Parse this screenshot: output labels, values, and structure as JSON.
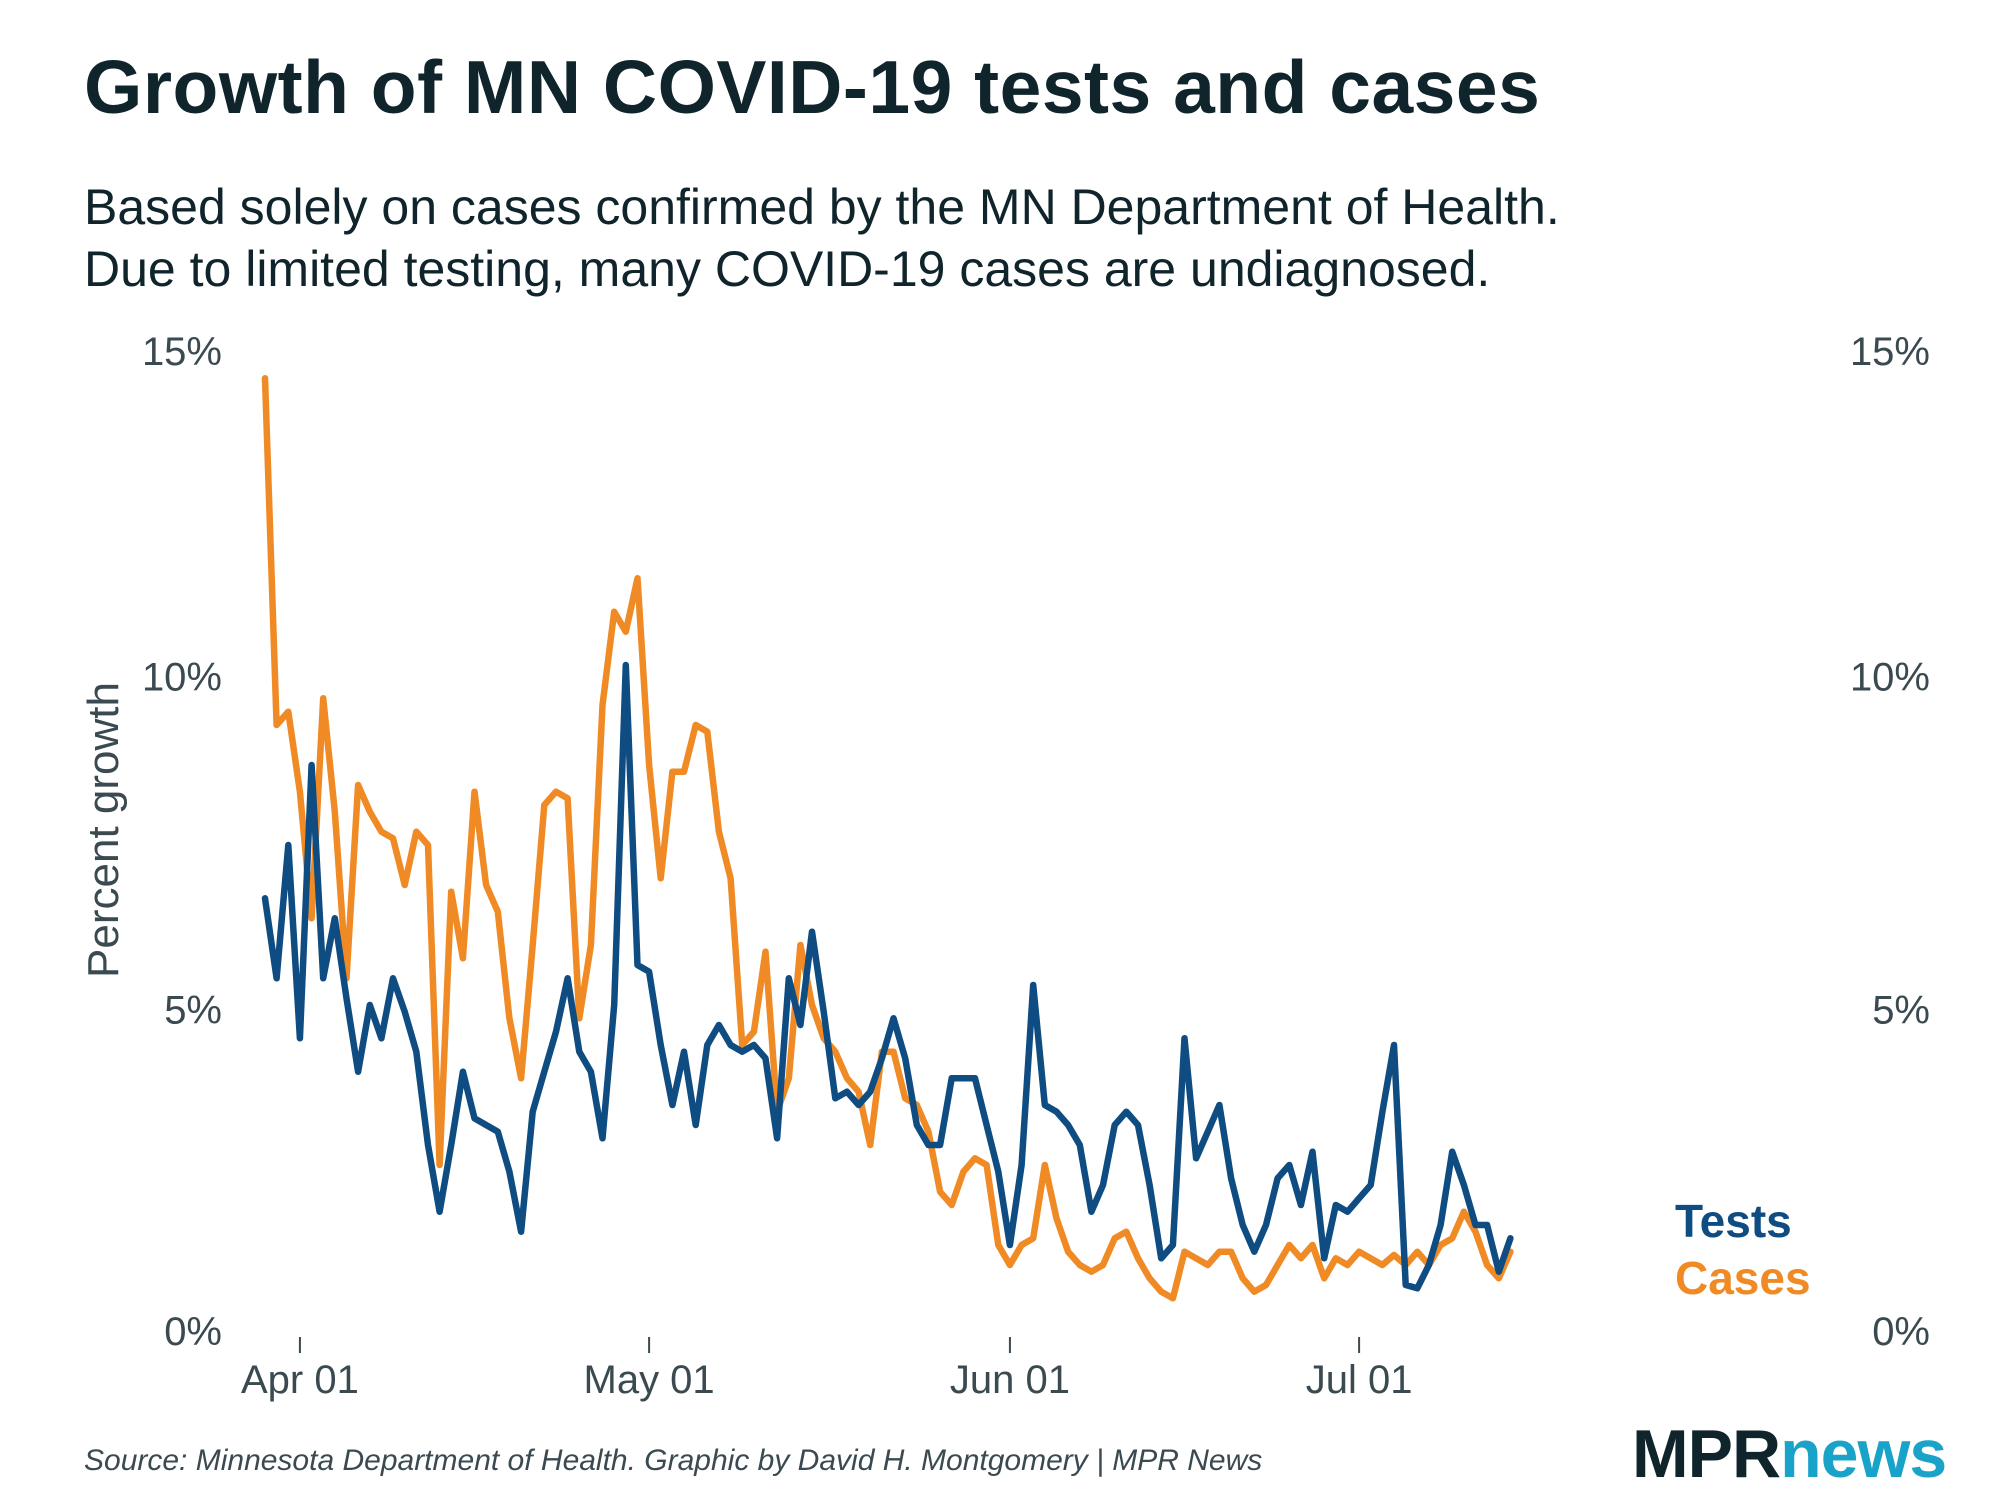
{
  "header": {
    "title": "Growth of MN COVID-19 tests and cases",
    "subtitle_line1": "Based solely on cases confirmed by the MN Department of Health.",
    "subtitle_line2": "Due to limited testing, many COVID-19 cases are undiagnosed."
  },
  "footer": {
    "source": "Source: Minnesota Department of Health. Graphic by David H. Montgomery | MPR News",
    "logo_mpr": "MPR",
    "logo_news": "news"
  },
  "colors": {
    "tests": "#0f4c81",
    "cases": "#f08a24",
    "text": "#10242b",
    "axis_text": "#3a4a50"
  },
  "chart_data": {
    "type": "line",
    "title": "Growth of MN COVID-19 tests and cases",
    "ylabel": "Percent growth",
    "xlabel": "",
    "ylim": [
      0,
      15
    ],
    "y_ticks": [
      {
        "value": 0,
        "label": "0%"
      },
      {
        "value": 5,
        "label": "5%"
      },
      {
        "value": 10,
        "label": "10%"
      },
      {
        "value": 15,
        "label": "15%"
      }
    ],
    "x_start_date": "Mar 29",
    "x_day_range": [
      0,
      122
    ],
    "x_ticks": [
      {
        "day": 3,
        "label": "Apr 01"
      },
      {
        "day": 33,
        "label": "May 01"
      },
      {
        "day": 64,
        "label": "Jun 01"
      },
      {
        "day": 94,
        "label": "Jul 01"
      }
    ],
    "grid": false,
    "series": [
      {
        "name": "Tests",
        "label": "Tests",
        "color": "#0f4c81",
        "values": [
          6.7,
          5.5,
          7.5,
          4.6,
          8.7,
          5.5,
          6.4,
          5.2,
          4.1,
          5.1,
          4.6,
          5.5,
          5.0,
          4.4,
          3.0,
          2.0,
          3.0,
          4.1,
          3.4,
          3.3,
          3.2,
          2.6,
          1.7,
          3.5,
          4.1,
          4.7,
          5.5,
          4.4,
          4.1,
          3.1,
          5.1,
          10.2,
          5.7,
          5.6,
          4.5,
          3.6,
          4.4,
          3.3,
          4.5,
          4.8,
          4.5,
          4.4,
          4.5,
          4.3,
          3.1,
          5.5,
          4.8,
          6.2,
          5.0,
          3.7,
          3.8,
          3.6,
          3.8,
          4.3,
          4.9,
          4.3,
          3.3,
          3.0,
          3.0,
          4.0,
          4.0,
          4.0,
          3.3,
          2.6,
          1.5,
          2.7,
          5.4,
          3.6,
          3.5,
          3.3,
          3.0,
          2.0,
          2.4,
          3.3,
          3.5,
          3.3,
          2.4,
          1.3,
          1.5,
          4.6,
          2.8,
          3.2,
          3.6,
          2.5,
          1.8,
          1.4,
          1.8,
          2.5,
          2.7,
          2.1,
          2.9,
          1.3,
          2.1,
          2.0,
          2.2,
          2.4,
          3.5,
          4.5,
          0.9,
          0.85,
          1.2,
          1.8,
          2.9,
          2.4,
          1.8,
          1.8,
          1.1,
          1.6
        ]
      },
      {
        "name": "Cases",
        "label": "Cases",
        "color": "#f08a24",
        "values": [
          14.5,
          9.3,
          9.5,
          8.3,
          6.4,
          9.7,
          8.0,
          5.5,
          8.4,
          8.0,
          7.7,
          7.6,
          6.9,
          7.7,
          7.5,
          2.7,
          6.8,
          5.8,
          8.3,
          6.9,
          6.5,
          4.9,
          4.0,
          6.0,
          8.1,
          8.3,
          8.2,
          4.9,
          6.0,
          9.6,
          11.0,
          10.7,
          11.5,
          8.7,
          7.0,
          8.6,
          8.6,
          9.3,
          9.2,
          7.7,
          7.0,
          4.5,
          4.7,
          5.9,
          3.5,
          4.0,
          6.0,
          5.1,
          4.6,
          4.4,
          4.0,
          3.8,
          3.0,
          4.4,
          4.4,
          3.7,
          3.6,
          3.2,
          2.3,
          2.1,
          2.6,
          2.8,
          2.7,
          1.5,
          1.2,
          1.5,
          1.6,
          2.7,
          1.9,
          1.4,
          1.2,
          1.1,
          1.2,
          1.6,
          1.7,
          1.3,
          1.0,
          0.8,
          0.7,
          1.4,
          1.3,
          1.2,
          1.4,
          1.4,
          1.0,
          0.8,
          0.9,
          1.2,
          1.5,
          1.3,
          1.5,
          1.0,
          1.3,
          1.2,
          1.4,
          1.3,
          1.2,
          1.35,
          1.2,
          1.4,
          1.2,
          1.5,
          1.6,
          2.0,
          1.7,
          1.2,
          1.0,
          1.4
        ]
      }
    ]
  }
}
